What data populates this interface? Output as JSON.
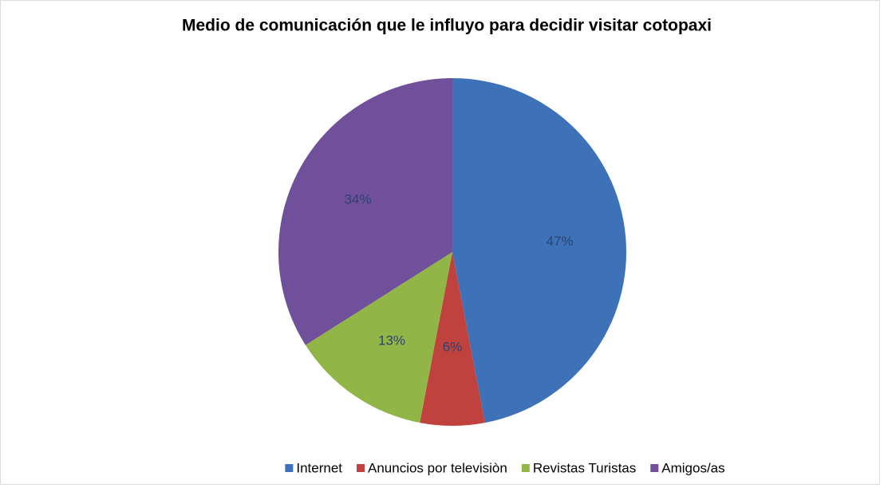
{
  "chart_data": {
    "type": "pie",
    "title": "Medio de comunicación que le influyo para decidir visitar cotopaxi",
    "categories": [
      "Internet",
      "Anuncios por televisiòn",
      "Revistas Turistas",
      "Amigos/as"
    ],
    "values": [
      47,
      6,
      13,
      34
    ],
    "value_labels": [
      "47%",
      "6%",
      "13%",
      "34%"
    ],
    "colors": [
      "#3d72b8",
      "#c0423f",
      "#92b548",
      "#70509a"
    ],
    "legend": "bottom"
  }
}
